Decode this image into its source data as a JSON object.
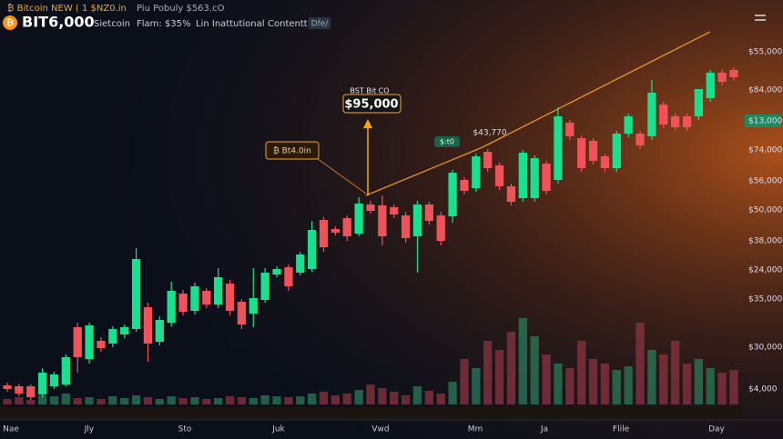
{
  "header": {
    "ticker_line": "₿ Bitcoin NEW ( 1 $NZ0.in",
    "ticker_line2": "Piu Pobuly $563.cO",
    "logo": "₿",
    "price": "BIT6,000",
    "tabs": [
      "Sietcoin",
      "Flam: $35%",
      "Lin Inattutional",
      "Contentt"
    ],
    "badge": "Dfe/"
  },
  "chart": {
    "type": "candlestick",
    "ylim": [
      0,
      405
    ],
    "vlim": [
      0,
      115
    ],
    "price_labels": [
      "$55,000",
      "$84,000",
      "$13,000",
      "$74,000",
      "$56,000",
      "$50,000",
      "$38,000",
      "$24,000",
      "$35,000",
      "$30,000",
      "$4,000"
    ],
    "x_labels": [
      "Nae",
      "Jly",
      "Sto",
      "Juk",
      "Vwd",
      "Mm",
      "Ja",
      "Flile",
      "Day"
    ],
    "annotations": {
      "peak_caption": "BST Bit CO",
      "peak_price": "$95,000",
      "left_box": "₿ Bt4.0in",
      "right_price": "$43,770",
      "right_badge": "$:t0"
    },
    "up_color": "#19e08e",
    "down_color": "#f0525a",
    "candles": [
      [
        21,
        24,
        14,
        17
      ],
      [
        20,
        23,
        9,
        12
      ],
      [
        20,
        22,
        5,
        8
      ],
      [
        11,
        40,
        8,
        35
      ],
      [
        20,
        36,
        17,
        33
      ],
      [
        22,
        55,
        20,
        52
      ],
      [
        85,
        90,
        35,
        52
      ],
      [
        50,
        90,
        45,
        87
      ],
      [
        70,
        74,
        58,
        62
      ],
      [
        67,
        86,
        63,
        83
      ],
      [
        77,
        88,
        73,
        85
      ],
      [
        83,
        172,
        80,
        160
      ],
      [
        107,
        112,
        47,
        67
      ],
      [
        69,
        97,
        65,
        93
      ],
      [
        90,
        135,
        86,
        125
      ],
      [
        122,
        126,
        98,
        102
      ],
      [
        103,
        134,
        99,
        130
      ],
      [
        125,
        128,
        106,
        110
      ],
      [
        110,
        150,
        106,
        140
      ],
      [
        133,
        137,
        98,
        103
      ],
      [
        113,
        116,
        83,
        88
      ],
      [
        100,
        150,
        85,
        117
      ],
      [
        115,
        150,
        112,
        145
      ],
      [
        143,
        152,
        140,
        149
      ],
      [
        151,
        154,
        125,
        130
      ],
      [
        145,
        168,
        142,
        165
      ],
      [
        149,
        202,
        146,
        192
      ],
      [
        203,
        206,
        168,
        173
      ],
      [
        193,
        196,
        186,
        189
      ],
      [
        205,
        208,
        180,
        185
      ],
      [
        188,
        228,
        185,
        221
      ],
      [
        220,
        224,
        210,
        213
      ],
      [
        219,
        230,
        175,
        185
      ],
      [
        217,
        220,
        205,
        209
      ],
      [
        208,
        212,
        178,
        183
      ],
      [
        185,
        224,
        145,
        220
      ],
      [
        220,
        223,
        198,
        202
      ],
      [
        208,
        212,
        175,
        180
      ],
      [
        207,
        258,
        200,
        255
      ],
      [
        247,
        250,
        231,
        235
      ],
      [
        238,
        276,
        234,
        273
      ],
      [
        278,
        281,
        256,
        260
      ],
      [
        263,
        266,
        236,
        240
      ],
      [
        240,
        243,
        219,
        223
      ],
      [
        227,
        280,
        223,
        277
      ],
      [
        227,
        274,
        223,
        271
      ],
      [
        265,
        268,
        231,
        235
      ],
      [
        247,
        327,
        243,
        317
      ],
      [
        310,
        313,
        291,
        295
      ],
      [
        293,
        296,
        256,
        260
      ],
      [
        290,
        293,
        264,
        268
      ],
      [
        273,
        276,
        256,
        260
      ],
      [
        260,
        301,
        256,
        298
      ],
      [
        298,
        320,
        294,
        317
      ],
      [
        298,
        301,
        281,
        285
      ],
      [
        295,
        357,
        291,
        343
      ],
      [
        330,
        333,
        304,
        308
      ],
      [
        317,
        320,
        301,
        305
      ],
      [
        317,
        320,
        301,
        305
      ],
      [
        317,
        347,
        313,
        347
      ],
      [
        337,
        368,
        333,
        365
      ],
      [
        365,
        368,
        351,
        355
      ],
      [
        368,
        371,
        356,
        360
      ]
    ],
    "volumes": [
      6,
      8,
      5,
      10,
      9,
      12,
      7,
      8,
      6,
      9,
      7,
      10,
      8,
      6,
      9,
      7,
      8,
      6,
      7,
      9,
      8,
      7,
      10,
      9,
      8,
      9,
      12,
      14,
      10,
      12,
      16,
      22,
      18,
      14,
      10,
      20,
      15,
      12,
      25,
      50,
      40,
      70,
      60,
      80,
      95,
      75,
      55,
      45,
      40,
      70,
      50,
      45,
      38,
      42,
      90,
      60,
      55,
      70,
      45,
      50,
      40,
      35,
      38
    ]
  }
}
